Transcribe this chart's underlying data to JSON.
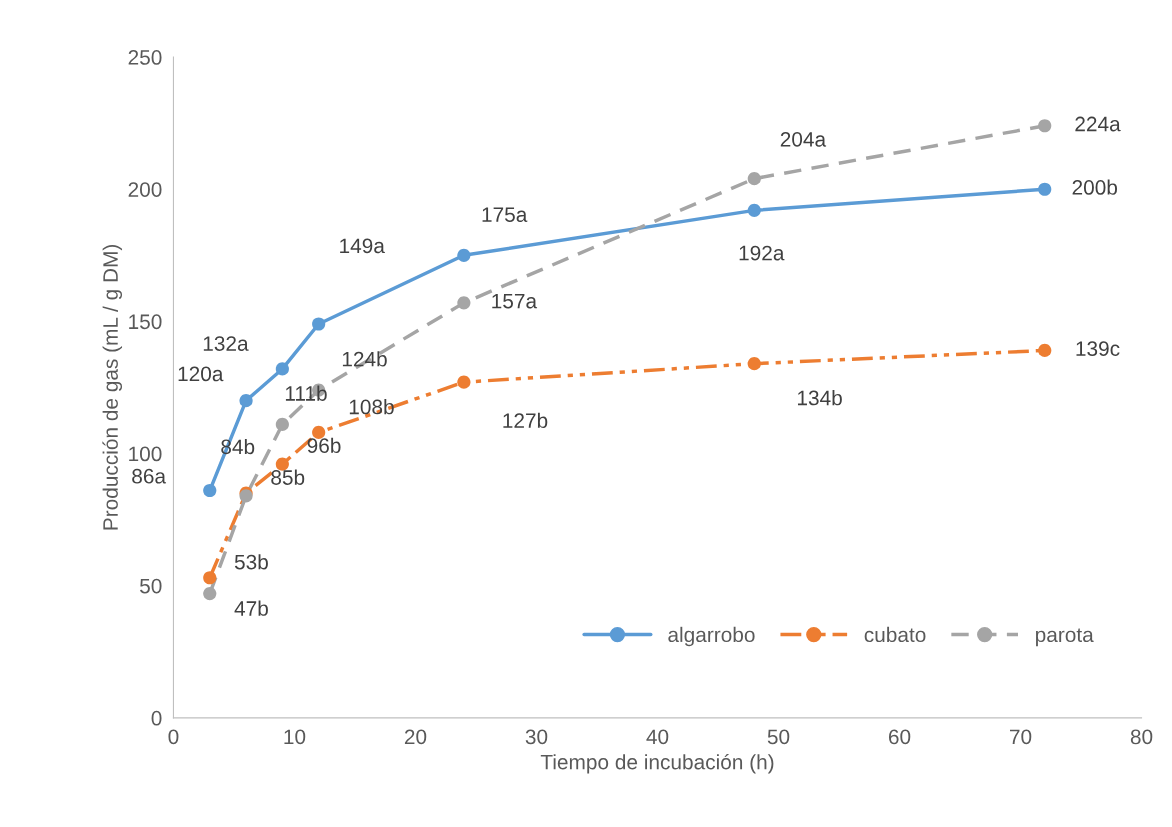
{
  "chart_data": {
    "type": "line",
    "xlabel": "Tiempo de incubación (h)",
    "ylabel": "Producción de gas (mL / g DM)",
    "x": [
      3,
      6,
      9,
      12,
      24,
      48,
      72
    ],
    "xlim": [
      0,
      80
    ],
    "xticks": [
      0,
      10,
      20,
      30,
      40,
      50,
      60,
      70,
      80
    ],
    "ylim": [
      0,
      250
    ],
    "yticks": [
      0,
      50,
      100,
      150,
      200,
      250
    ],
    "grid": false,
    "legend": "bottom right",
    "marker": "circle",
    "series": [
      {
        "name": "algarrobo",
        "color": "#5b9bd5",
        "line_style": "solid",
        "values": [
          86,
          120,
          132,
          149,
          175,
          192,
          200
        ],
        "value_labels": [
          "86a",
          "120a",
          "132a",
          "149a",
          "175a",
          "192a",
          "200b"
        ]
      },
      {
        "name": "cubato",
        "color": "#ed7d31",
        "line_style": "dashdotdot",
        "values": [
          53,
          85,
          96,
          108,
          127,
          134,
          139
        ],
        "value_labels": [
          "53b",
          "85b",
          "96b",
          "108b",
          "127b",
          "134b",
          "139c"
        ]
      },
      {
        "name": "parota",
        "color": "#a5a5a5",
        "line_style": "dashed",
        "values": [
          47,
          84,
          111,
          124,
          157,
          204,
          224
        ],
        "value_labels": [
          "47b",
          "84b",
          "111b",
          "124b",
          "157a",
          "204a",
          "224a"
        ]
      }
    ]
  }
}
